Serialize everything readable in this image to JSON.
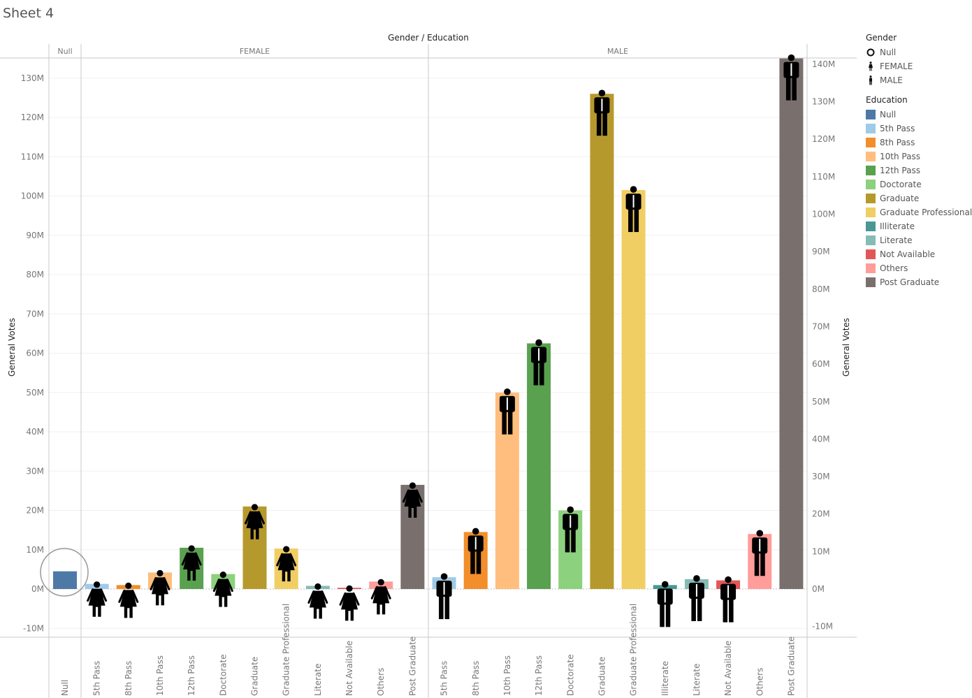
{
  "sheet_title": "Sheet 4",
  "header_label": "Gender / Education",
  "legends": {
    "gender": {
      "title": "Gender",
      "items": [
        {
          "label": "Null",
          "icon": "circle-icon"
        },
        {
          "label": "FEMALE",
          "icon": "female-person-icon"
        },
        {
          "label": "MALE",
          "icon": "male-person-icon"
        }
      ]
    },
    "education": {
      "title": "Education",
      "items": [
        {
          "label": "Null",
          "color": "#4e79a7"
        },
        {
          "label": "5th Pass",
          "color": "#a0cbe8"
        },
        {
          "label": "8th Pass",
          "color": "#f28e2b"
        },
        {
          "label": "10th Pass",
          "color": "#ffbe7d"
        },
        {
          "label": "12th Pass",
          "color": "#59a14f"
        },
        {
          "label": "Doctorate",
          "color": "#8cd17d"
        },
        {
          "label": "Graduate",
          "color": "#b6992d"
        },
        {
          "label": "Graduate Professional",
          "color": "#f1ce63"
        },
        {
          "label": "Illiterate",
          "color": "#499894"
        },
        {
          "label": "Literate",
          "color": "#86bcb6"
        },
        {
          "label": "Not Available",
          "color": "#e15759"
        },
        {
          "label": "Others",
          "color": "#ff9d9a"
        },
        {
          "label": "Post Graduate",
          "color": "#79706e"
        }
      ]
    }
  },
  "chart_data": {
    "type": "bar",
    "title": "",
    "ylabel": "General Votes",
    "ylabel_right": "General Votes",
    "column_header": "Gender / Education",
    "ylim_left": [
      -10,
      130
    ],
    "ylim_right": [
      -10,
      140
    ],
    "yticks_left": [
      "-10M",
      "0M",
      "10M",
      "20M",
      "30M",
      "40M",
      "50M",
      "60M",
      "70M",
      "80M",
      "90M",
      "100M",
      "110M",
      "120M",
      "130M"
    ],
    "yticks_right": [
      "-10M",
      "0M",
      "10M",
      "20M",
      "30M",
      "40M",
      "50M",
      "60M",
      "70M",
      "80M",
      "90M",
      "100M",
      "110M",
      "120M",
      "130M",
      "140M"
    ],
    "unit": "M",
    "panels": [
      {
        "name": "Null",
        "categories": [
          "Null"
        ],
        "values": [
          4.5
        ],
        "marker": "circle",
        "colors": [
          "#4e79a7"
        ]
      },
      {
        "name": "FEMALE",
        "categories": [
          "5th Pass",
          "8th Pass",
          "10th Pass",
          "12th Pass",
          "Doctorate",
          "Graduate",
          "Graduate Professional",
          "Literate",
          "Not Available",
          "Others",
          "Post Graduate"
        ],
        "values": [
          1.3,
          1.0,
          4.2,
          10.5,
          3.8,
          21.0,
          10.3,
          0.8,
          0.3,
          1.9,
          26.5
        ],
        "marker": "female",
        "colors": [
          "#a0cbe8",
          "#f28e2b",
          "#ffbe7d",
          "#59a14f",
          "#8cd17d",
          "#b6992d",
          "#f1ce63",
          "#86bcb6",
          "#e15759",
          "#ff9d9a",
          "#79706e"
        ]
      },
      {
        "name": "MALE",
        "categories": [
          "5th Pass",
          "8th Pass",
          "10th Pass",
          "12th Pass",
          "Doctorate",
          "Graduate",
          "Graduate Professional",
          "Illiterate",
          "Literate",
          "Not Available",
          "Others",
          "Post Graduate"
        ],
        "values": [
          3.0,
          14.5,
          50.0,
          62.5,
          20.0,
          126.0,
          101.5,
          1.0,
          2.5,
          2.2,
          14.0,
          135.0
        ],
        "marker": "male",
        "colors": [
          "#a0cbe8",
          "#f28e2b",
          "#ffbe7d",
          "#59a14f",
          "#8cd17d",
          "#b6992d",
          "#f1ce63",
          "#499894",
          "#86bcb6",
          "#e15759",
          "#ff9d9a",
          "#79706e"
        ]
      }
    ]
  }
}
